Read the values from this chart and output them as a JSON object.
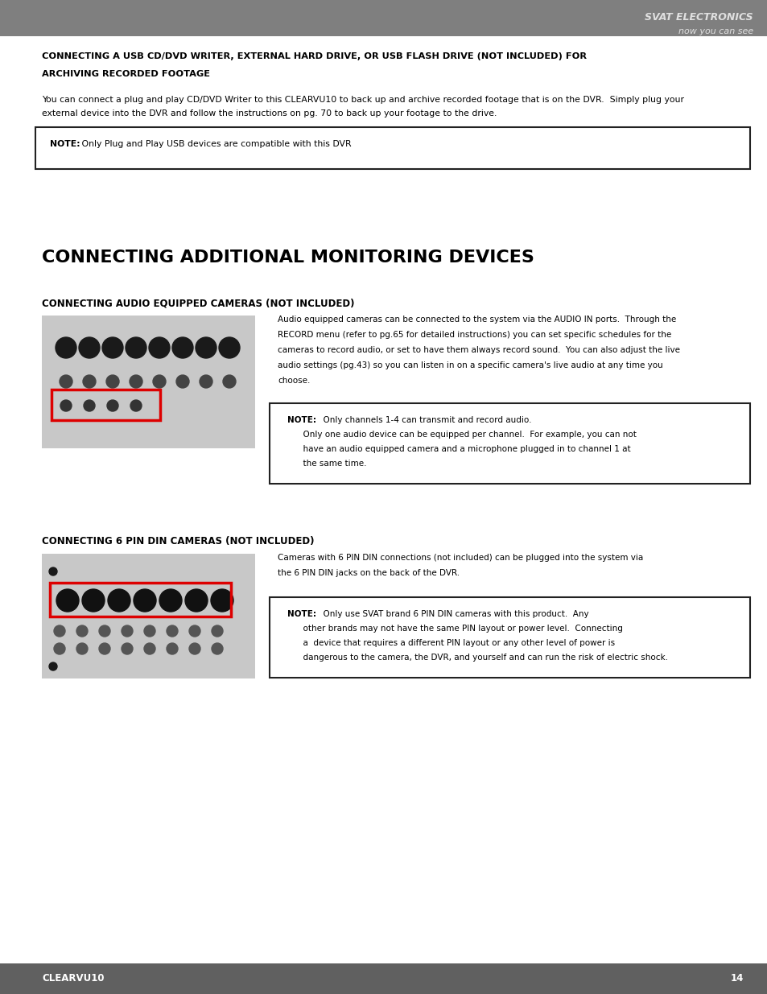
{
  "bg_color": "#ffffff",
  "header_bg": "#7f7f7f",
  "header_text_color": "#e0e0e0",
  "header_brand": "SVAT ELECTRONICS",
  "header_tagline": "now you can see",
  "footer_bg": "#606060",
  "footer_text": "CLEARVU10",
  "footer_page": "14",
  "note1_bold": "NOTE:",
  "note1_text": " Only Plug and Play USB devices are compatible with this DVR",
  "note2_line1_bold": "NOTE:",
  "note2_line1": "  Only channels 1-4 can transmit and record audio.",
  "note2_line2": "      Only one audio device can be equipped per channel.  For example, you can not",
  "note2_line3": "      have an audio equipped camera and a microphone plugged in to channel 1 at",
  "note2_line4": "      the same time.",
  "note3_line1_bold": "NOTE:",
  "note3_line1": "  Only use SVAT brand 6 PIN DIN cameras with this product.  Any",
  "note3_line2": "      other brands may not have the same PIN layout or power level.  Connecting",
  "note3_line3": "      a  device that requires a different PIN layout or any other level of power is",
  "note3_line4": "      dangerous to the camera, the DVR, and yourself and can run the risk of electric shock.",
  "text_color": "#000000",
  "border_color": "#222222",
  "gray_img": "#c8c8c8",
  "red_box": "#dd0000"
}
